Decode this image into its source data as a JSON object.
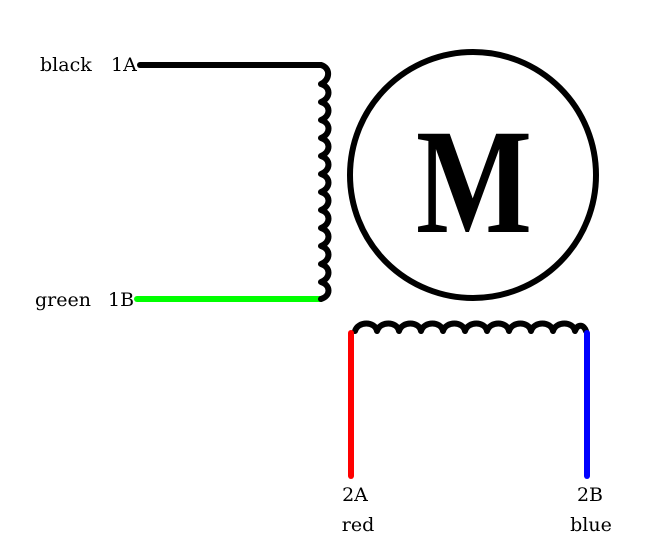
{
  "motor": {
    "label": "M"
  },
  "coil1": {
    "lead_a": {
      "color_name": "black",
      "pin": "1A",
      "color": "#000000"
    },
    "lead_b": {
      "color_name": "green",
      "pin": "1B",
      "color": "#00ff00"
    }
  },
  "coil2": {
    "lead_a": {
      "color_name": "red",
      "pin": "2A",
      "color": "#ff0000"
    },
    "lead_b": {
      "color_name": "blue",
      "pin": "2B",
      "color": "#0000ff"
    }
  }
}
